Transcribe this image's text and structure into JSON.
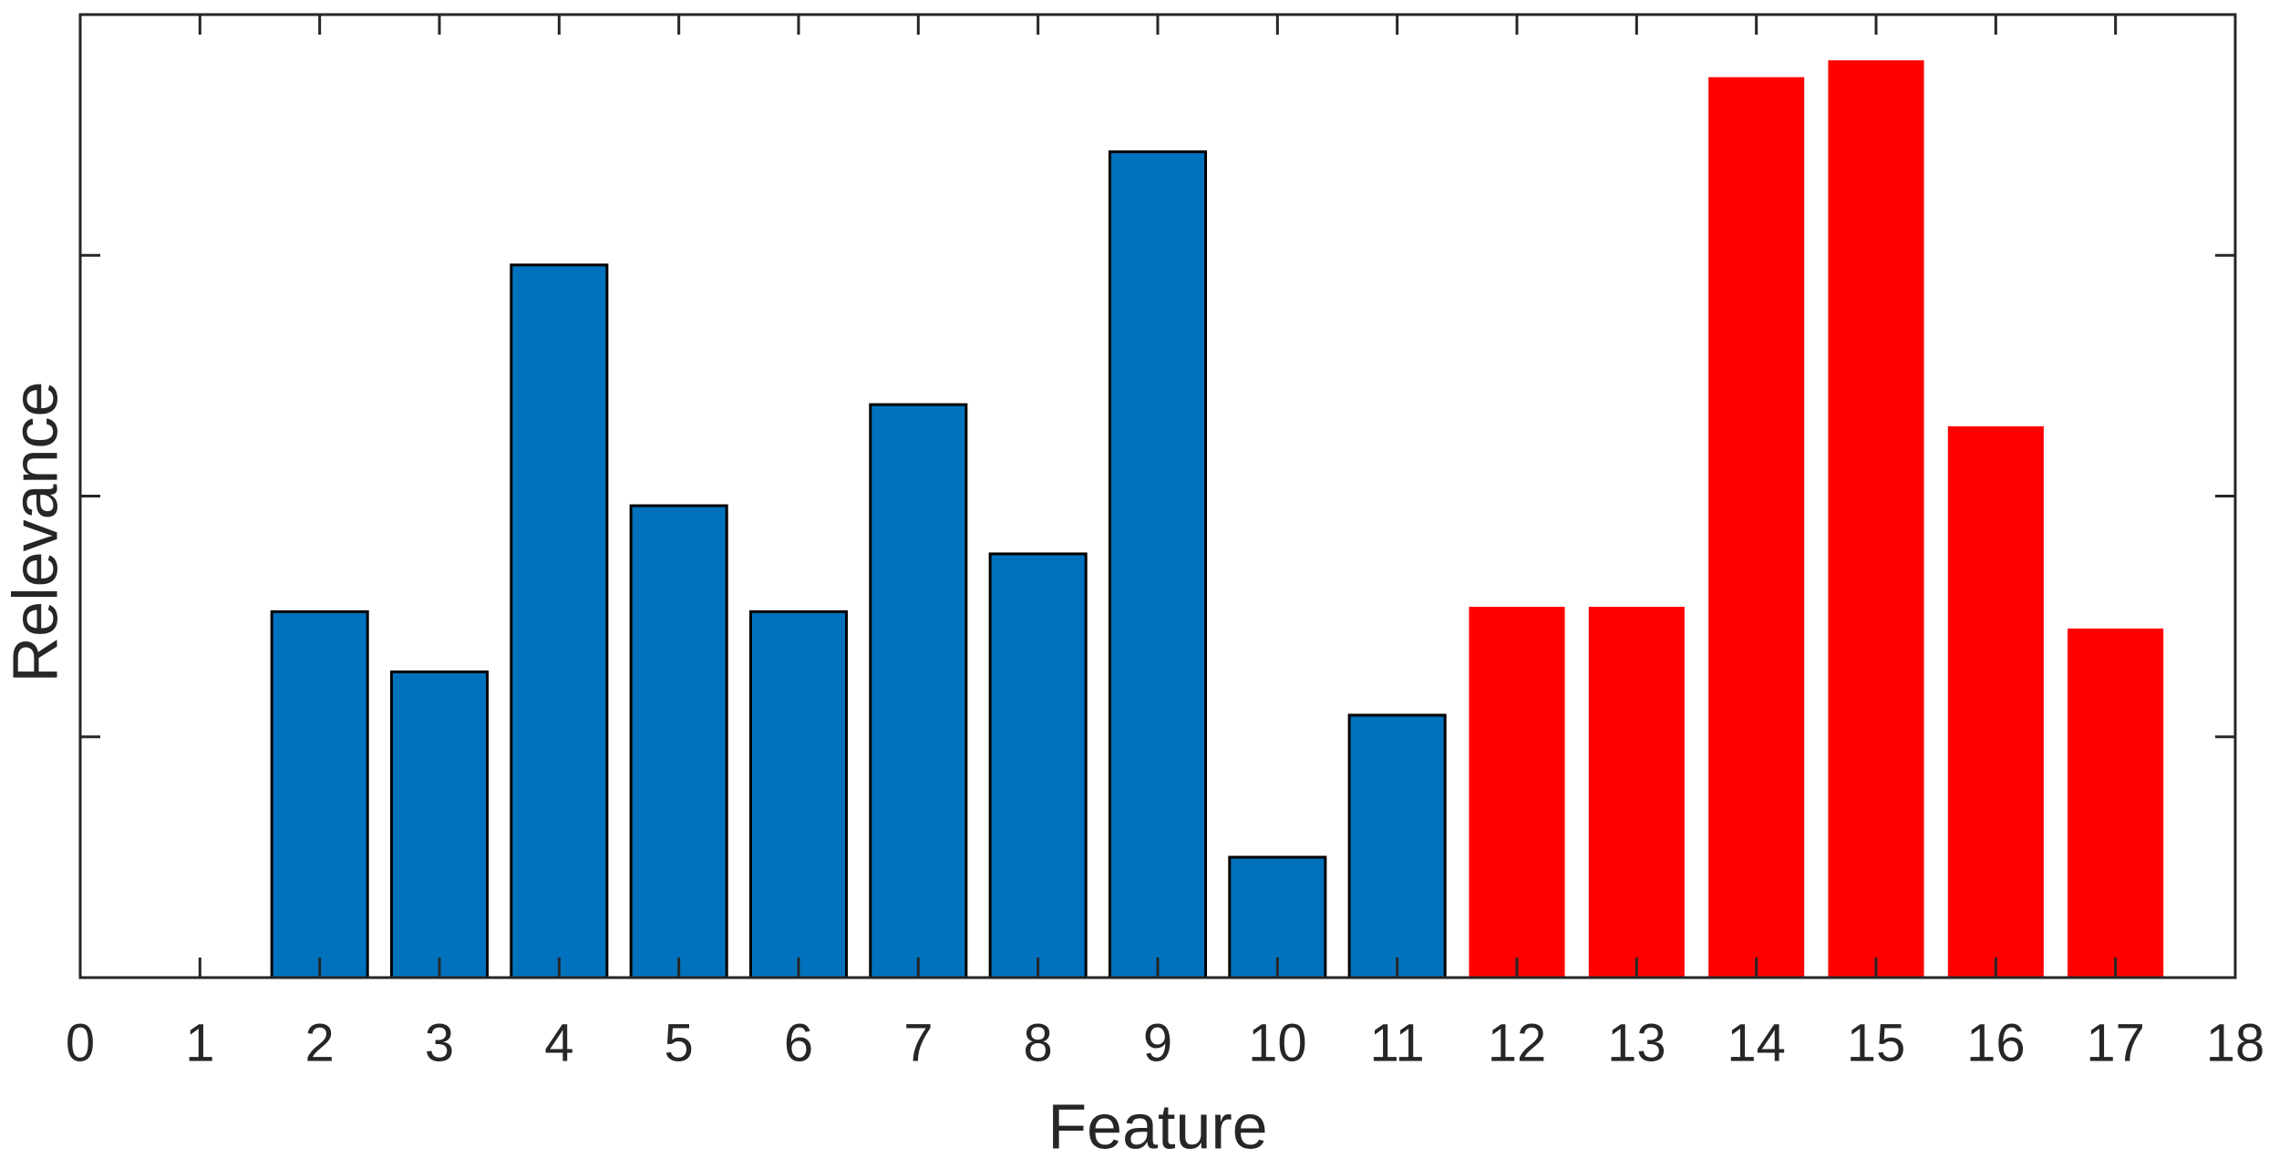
{
  "chart_data": {
    "type": "bar",
    "x_label": "Feature",
    "y_label": "Relevance",
    "x": [
      1,
      2,
      3,
      4,
      5,
      6,
      7,
      8,
      9,
      10,
      11,
      12,
      13,
      14,
      15,
      16,
      17
    ],
    "values": [
      0,
      1.52,
      1.27,
      2.96,
      1.96,
      1.52,
      2.38,
      1.76,
      3.43,
      0.5,
      1.09,
      1.54,
      1.54,
      3.74,
      3.81,
      2.29,
      1.45
    ],
    "colors": [
      "#0072bd",
      "#0072bd",
      "#0072bd",
      "#0072bd",
      "#0072bd",
      "#0072bd",
      "#0072bd",
      "#0072bd",
      "#0072bd",
      "#0072bd",
      "#0072bd",
      "#ff0000",
      "#ff0000",
      "#ff0000",
      "#ff0000",
      "#ff0000",
      "#ff0000"
    ],
    "edgecolors": [
      "#000000",
      "#000000",
      "#000000",
      "#000000",
      "#000000",
      "#000000",
      "#000000",
      "#000000",
      "#000000",
      "#000000",
      "#000000",
      "none",
      "none",
      "none",
      "none",
      "none",
      "none"
    ],
    "bar_width": 0.8,
    "xlim": [
      0,
      18
    ],
    "xticks": [
      0,
      1,
      2,
      3,
      4,
      5,
      6,
      7,
      8,
      9,
      10,
      11,
      12,
      13,
      14,
      15,
      16,
      17,
      18
    ],
    "ylim": [
      0,
      4
    ],
    "yticks": [
      0,
      1,
      2,
      3
    ],
    "grid": false
  }
}
